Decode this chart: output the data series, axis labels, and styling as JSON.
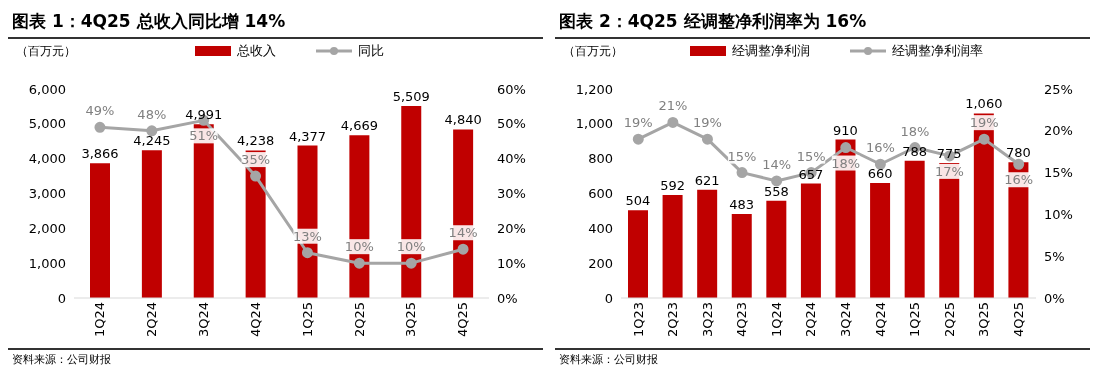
{
  "chart_data": [
    {
      "type": "bar",
      "title": "图表 1：4Q25 总收入同比增 14%",
      "ylabel": "（百万元）",
      "categories": [
        "1Q24",
        "2Q24",
        "3Q24",
        "4Q24",
        "1Q25",
        "2Q25",
        "3Q25",
        "4Q25"
      ],
      "series": [
        {
          "name": "总收入",
          "color": "#c00000",
          "values": [
            3866,
            4245,
            4991,
            4238,
            4377,
            4669,
            5509,
            4840
          ],
          "value_labels": [
            "3,866",
            "4,245",
            "4,991",
            "4,238",
            "4,377",
            "4,669",
            "5,509",
            "4,840"
          ]
        },
        {
          "name": "同比",
          "type": "line",
          "axis": "y2",
          "color": "#a5a5a5",
          "values": [
            49,
            48,
            51,
            35,
            13,
            10,
            10,
            14
          ],
          "value_labels": [
            "49%",
            "48%",
            "51%",
            "35%",
            "13%",
            "10%",
            "10%",
            "14%"
          ]
        }
      ],
      "ylim": [
        0,
        6000
      ],
      "yticks": [
        0,
        {
          "value": 1000,
          "label": "1,000"
        },
        {
          "value": 2000,
          "label": "2,000"
        },
        {
          "value": 3000,
          "label": "3,000"
        },
        {
          "value": 4000,
          "label": "4,000"
        },
        {
          "value": 5000,
          "label": "5,000"
        },
        {
          "value": 6000,
          "label": "6,000"
        }
      ],
      "y2lim": [
        0,
        60
      ],
      "y2ticks": [
        {
          "value": 0,
          "label": "0%"
        },
        {
          "value": 10,
          "label": "10%"
        },
        {
          "value": 20,
          "label": "20%"
        },
        {
          "value": 30,
          "label": "30%"
        },
        {
          "value": 40,
          "label": "40%"
        },
        {
          "value": 50,
          "label": "50%"
        },
        {
          "value": 60,
          "label": "60%"
        }
      ],
      "marker": "circle",
      "legend": "top",
      "grid": false,
      "annotations": [
        "资料来源：公司财报"
      ]
    },
    {
      "type": "bar",
      "title": "图表 2：4Q25 经调整净利润率为 16%",
      "ylabel": "（百万元）",
      "categories": [
        "1Q23",
        "2Q23",
        "3Q23",
        "4Q23",
        "1Q24",
        "2Q24",
        "3Q24",
        "4Q24",
        "1Q25",
        "2Q25",
        "3Q25",
        "4Q25"
      ],
      "series": [
        {
          "name": "经调整净利润",
          "color": "#c00000",
          "values": [
            504,
            592,
            621,
            483,
            558,
            657,
            910,
            660,
            788,
            775,
            1060,
            780
          ],
          "value_labels": [
            "504",
            "592",
            "621",
            "483",
            "558",
            "657",
            "910",
            "660",
            "788",
            "775",
            "1,060",
            "780"
          ]
        },
        {
          "name": "经调整净利润率",
          "type": "line",
          "axis": "y2",
          "color": "#a5a5a5",
          "values": [
            19,
            21,
            19,
            15,
            14,
            15,
            18,
            16,
            18,
            17,
            19,
            16
          ],
          "value_labels": [
            "19%",
            "21%",
            "19%",
            "15%",
            "14%",
            "15%",
            "18%",
            "16%",
            "18%",
            "17%",
            "19%",
            "16%"
          ]
        }
      ],
      "ylim": [
        0,
        1200
      ],
      "yticks": [
        0,
        200,
        400,
        600,
        800,
        {
          "value": 1000,
          "label": "1,000"
        },
        {
          "value": 1200,
          "label": "1,200"
        }
      ],
      "y2lim": [
        0,
        25
      ],
      "y2ticks": [
        {
          "value": 0,
          "label": "0%"
        },
        {
          "value": 5,
          "label": "5%"
        },
        {
          "value": 10,
          "label": "10%"
        },
        {
          "value": 15,
          "label": "15%"
        },
        {
          "value": 20,
          "label": "20%"
        },
        {
          "value": 25,
          "label": "25%"
        }
      ],
      "marker": "circle",
      "legend": "top",
      "grid": false,
      "annotations": [
        "资料来源：公司财报"
      ]
    }
  ]
}
